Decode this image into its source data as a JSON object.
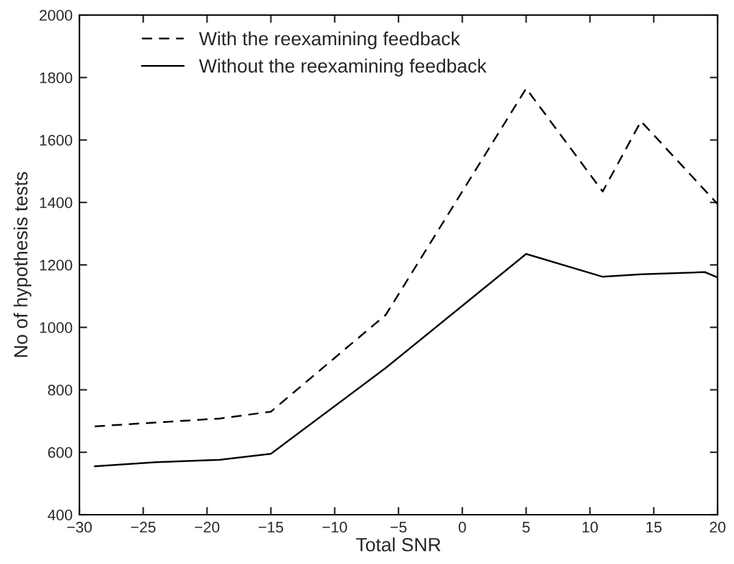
{
  "chart_data": {
    "type": "line",
    "xlabel": "Total SNR",
    "ylabel": "No of hypothesis tests",
    "xlim": [
      -30,
      20
    ],
    "ylim": [
      400,
      2000
    ],
    "xticks": [
      {
        "value": -30,
        "label": "−30"
      },
      {
        "value": -25,
        "label": "−25"
      },
      {
        "value": -20,
        "label": "−20"
      },
      {
        "value": -15,
        "label": "−15"
      },
      {
        "value": -10,
        "label": "−10"
      },
      {
        "value": -5,
        "label": "−5"
      },
      0,
      5,
      10,
      15,
      20
    ],
    "yticks": [
      400,
      600,
      800,
      1000,
      1200,
      1400,
      1600,
      1800,
      2000
    ],
    "legend": "top left",
    "grid": false,
    "marker": "none",
    "series": [
      {
        "name": "With the reexamining feedback",
        "color": "#000000",
        "line_style": "dashed",
        "x": [
          -28.8,
          -19,
          -15,
          -6,
          5,
          11,
          14,
          20
        ],
        "values": [
          683,
          708,
          730,
          1040,
          1765,
          1435,
          1660,
          1395
        ]
      },
      {
        "name": "Without the reexamining feedback",
        "color": "#000000",
        "line_style": "solid",
        "x": [
          -28.8,
          -24,
          -19,
          -15,
          -6,
          5,
          11,
          14,
          19,
          20
        ],
        "values": [
          555,
          568,
          576,
          595,
          870,
          1235,
          1162,
          1170,
          1177,
          1160
        ]
      }
    ]
  }
}
